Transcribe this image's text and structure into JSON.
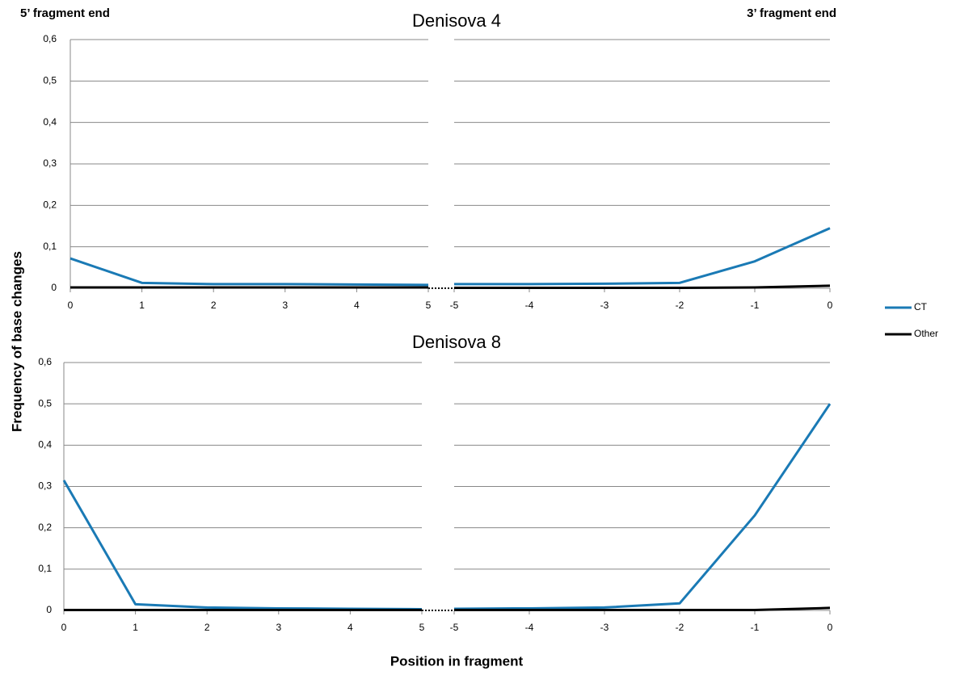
{
  "left_end_label": "5’ fragment end",
  "right_end_label": "3’ fragment end",
  "y_axis_label": "Frequency of base changes",
  "x_axis_label": "Position in fragment",
  "chart_data": [
    {
      "type": "line",
      "title": "Denisova 4",
      "grid": true,
      "ylim": [
        0,
        0.6
      ],
      "yticks": [
        0,
        {
          "value": 0.1,
          "label": "0,1"
        },
        {
          "value": 0.2,
          "label": "0,2"
        },
        {
          "value": 0.3,
          "label": "0,3"
        },
        {
          "value": 0.4,
          "label": "0,4"
        },
        {
          "value": 0.5,
          "label": "0,5"
        },
        {
          "value": 0.6,
          "label": "0,6"
        }
      ],
      "panels": [
        {
          "x": [
            0,
            1,
            2,
            3,
            4,
            5
          ],
          "xlim": [
            0,
            5
          ],
          "xticks": [
            0,
            1,
            2,
            3,
            4,
            5
          ],
          "series": [
            {
              "name": "CT",
              "color": "#1a7ab5",
              "values": [
                0.072,
                0.013,
                0.01,
                0.01,
                0.009,
                0.008
              ]
            },
            {
              "name": "Other",
              "color": "#000000",
              "values": [
                0.002,
                0.002,
                0.002,
                0.002,
                0.002,
                0.002
              ]
            }
          ]
        },
        {
          "x": [
            -5,
            -4,
            -3,
            -2,
            -1,
            0
          ],
          "xlim": [
            -5,
            0
          ],
          "xticks": [
            -5,
            -4,
            -3,
            -2,
            -1,
            0
          ],
          "series": [
            {
              "name": "CT",
              "color": "#1a7ab5",
              "values": [
                0.01,
                0.01,
                0.011,
                0.013,
                0.065,
                0.145
              ]
            },
            {
              "name": "Other",
              "color": "#000000",
              "values": [
                0.001,
                0.001,
                0.001,
                0.001,
                0.002,
                0.006
              ]
            }
          ]
        }
      ]
    },
    {
      "type": "line",
      "title": "Denisova 8",
      "grid": true,
      "ylim": [
        0,
        0.6
      ],
      "yticks": [
        0,
        {
          "value": 0.1,
          "label": "0,1"
        },
        {
          "value": 0.2,
          "label": "0,2"
        },
        {
          "value": 0.3,
          "label": "0,3"
        },
        {
          "value": 0.4,
          "label": "0,4"
        },
        {
          "value": 0.5,
          "label": "0,5"
        },
        {
          "value": 0.6,
          "label": "0,6"
        }
      ],
      "panels": [
        {
          "x": [
            0,
            1,
            2,
            3,
            4,
            5
          ],
          "xlim": [
            0,
            5
          ],
          "xticks": [
            0,
            1,
            2,
            3,
            4,
            5
          ],
          "series": [
            {
              "name": "CT",
              "color": "#1a7ab5",
              "values": [
                0.315,
                0.015,
                0.007,
                0.005,
                0.004,
                0.003
              ]
            },
            {
              "name": "Other",
              "color": "#000000",
              "values": [
                0.001,
                0.001,
                0.001,
                0.001,
                0.001,
                0.001
              ]
            }
          ]
        },
        {
          "x": [
            -5,
            -4,
            -3,
            -2,
            -1,
            0
          ],
          "xlim": [
            -5,
            0
          ],
          "xticks": [
            -5,
            -4,
            -3,
            -2,
            -1,
            0
          ],
          "series": [
            {
              "name": "CT",
              "color": "#1a7ab5",
              "values": [
                0.004,
                0.005,
                0.007,
                0.017,
                0.23,
                0.5
              ]
            },
            {
              "name": "Other",
              "color": "#000000",
              "values": [
                0.001,
                0.001,
                0.001,
                0.001,
                0.001,
                0.006
              ]
            }
          ]
        }
      ]
    }
  ]
}
